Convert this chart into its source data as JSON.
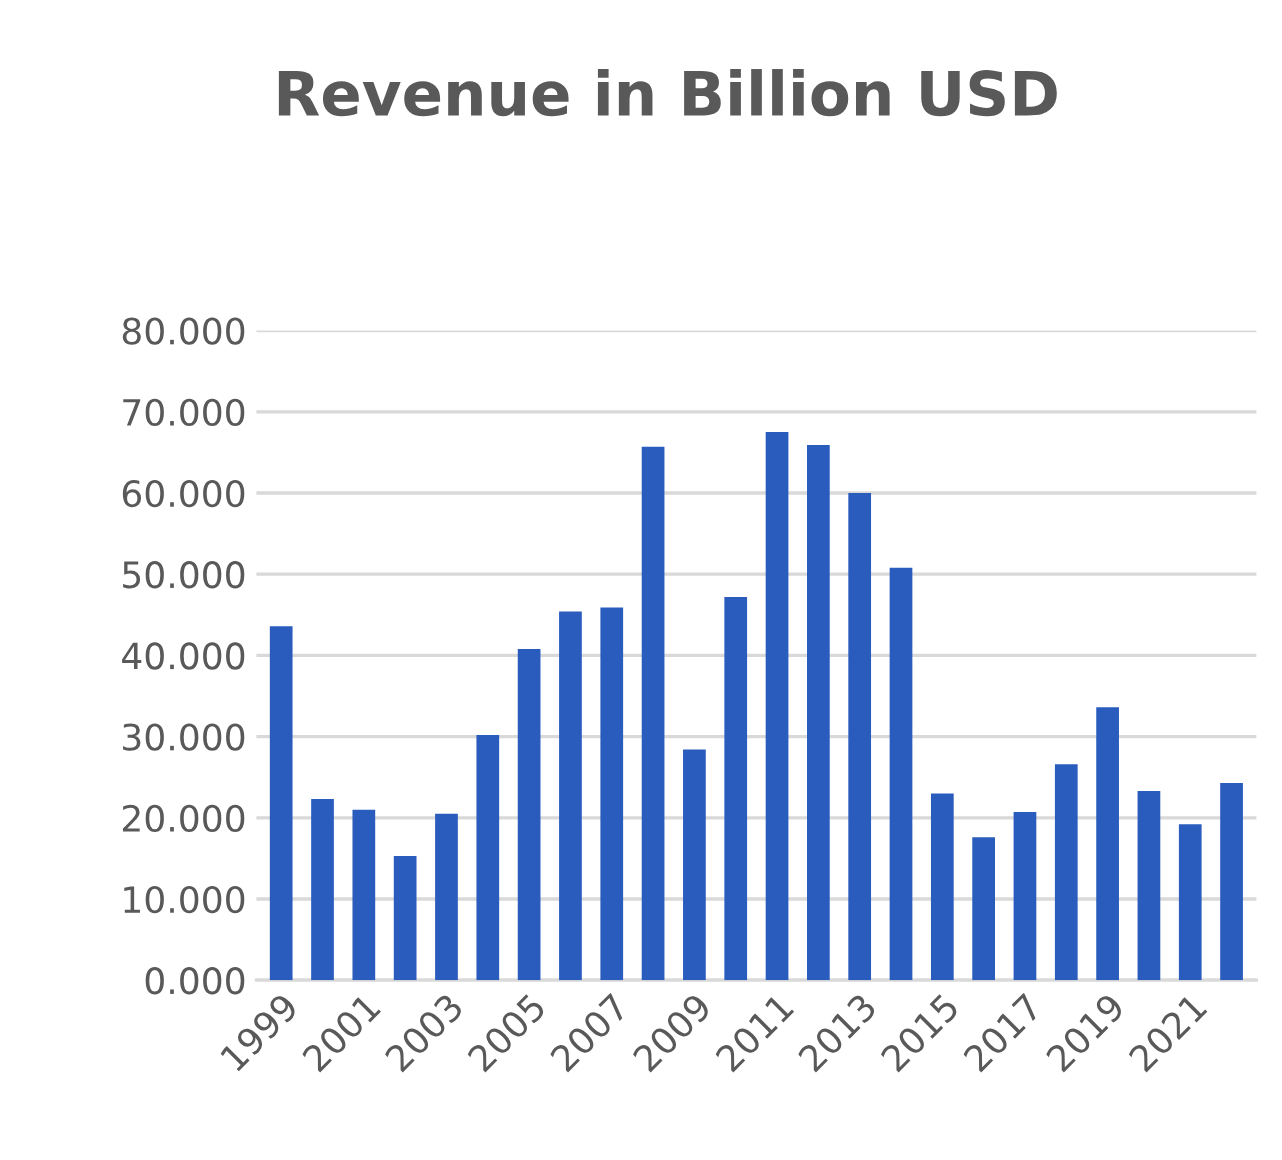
{
  "chart_data": {
    "type": "bar",
    "title": "Revenue in Billion USD",
    "categories": [
      "1999",
      null,
      "2001",
      null,
      "2003",
      null,
      "2005",
      null,
      "2007",
      null,
      "2009",
      null,
      "2011",
      null,
      "2013",
      null,
      "2015",
      null,
      "2017",
      null,
      "2019",
      null,
      "2021",
      null
    ],
    "values": [
      43.6,
      22.3,
      21.0,
      15.3,
      20.5,
      30.2,
      40.8,
      45.4,
      45.9,
      65.7,
      28.4,
      47.2,
      67.5,
      65.9,
      60.0,
      50.8,
      23.0,
      17.6,
      20.7,
      26.6,
      33.6,
      23.3,
      19.2,
      24.3
    ],
    "color": "#2a5cbe",
    "ylim": [
      0,
      80
    ],
    "yticks": [
      {
        "value": 0,
        "label": "0.000"
      },
      {
        "value": 10,
        "label": "10.000"
      },
      {
        "value": 20,
        "label": "20.000"
      },
      {
        "value": 30,
        "label": "30.000"
      },
      {
        "value": 40,
        "label": "40.000"
      },
      {
        "value": 50,
        "label": "50.000"
      },
      {
        "value": 60,
        "label": "60.000"
      },
      {
        "value": 70,
        "label": "70.000"
      },
      {
        "value": 80,
        "label": "80.000"
      }
    ],
    "grid": "y"
  }
}
